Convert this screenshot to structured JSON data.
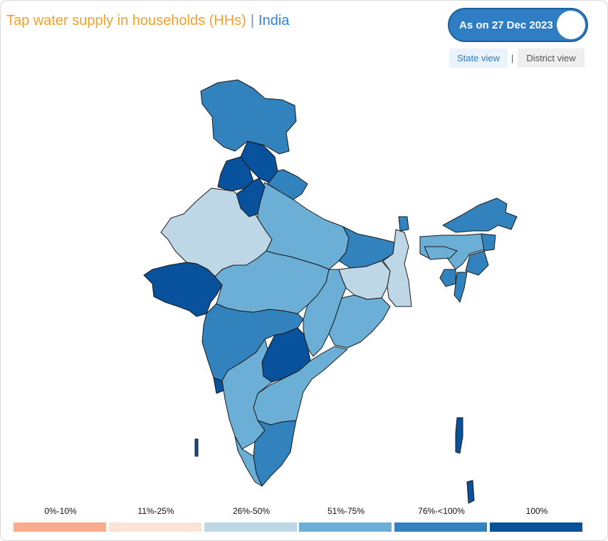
{
  "header": {
    "title": "Tap water supply in households (HHs)",
    "separator": "|",
    "region": "India"
  },
  "date_toggle": {
    "label": "As on 27 Dec 2023"
  },
  "view_switch": {
    "state_label": "State view",
    "separator": "|",
    "district_label": "District view",
    "active": "State view"
  },
  "legend": [
    {
      "label": "0%-10%",
      "color": "#f9ab8c"
    },
    {
      "label": "11%-25%",
      "color": "#fde2d6"
    },
    {
      "label": "26%-50%",
      "color": "#bdd7e7"
    },
    {
      "label": "51%-75%",
      "color": "#6baed6"
    },
    {
      "label": "76%-<100%",
      "color": "#3182bd"
    },
    {
      "label": "100%",
      "color": "#08519c"
    }
  ],
  "map": {
    "type": "choropleth",
    "colors": {
      "band_26_50": "#bdd7e7",
      "band_51_75": "#6baed6",
      "band_76_99": "#3182bd",
      "band_100": "#08519c"
    }
  }
}
